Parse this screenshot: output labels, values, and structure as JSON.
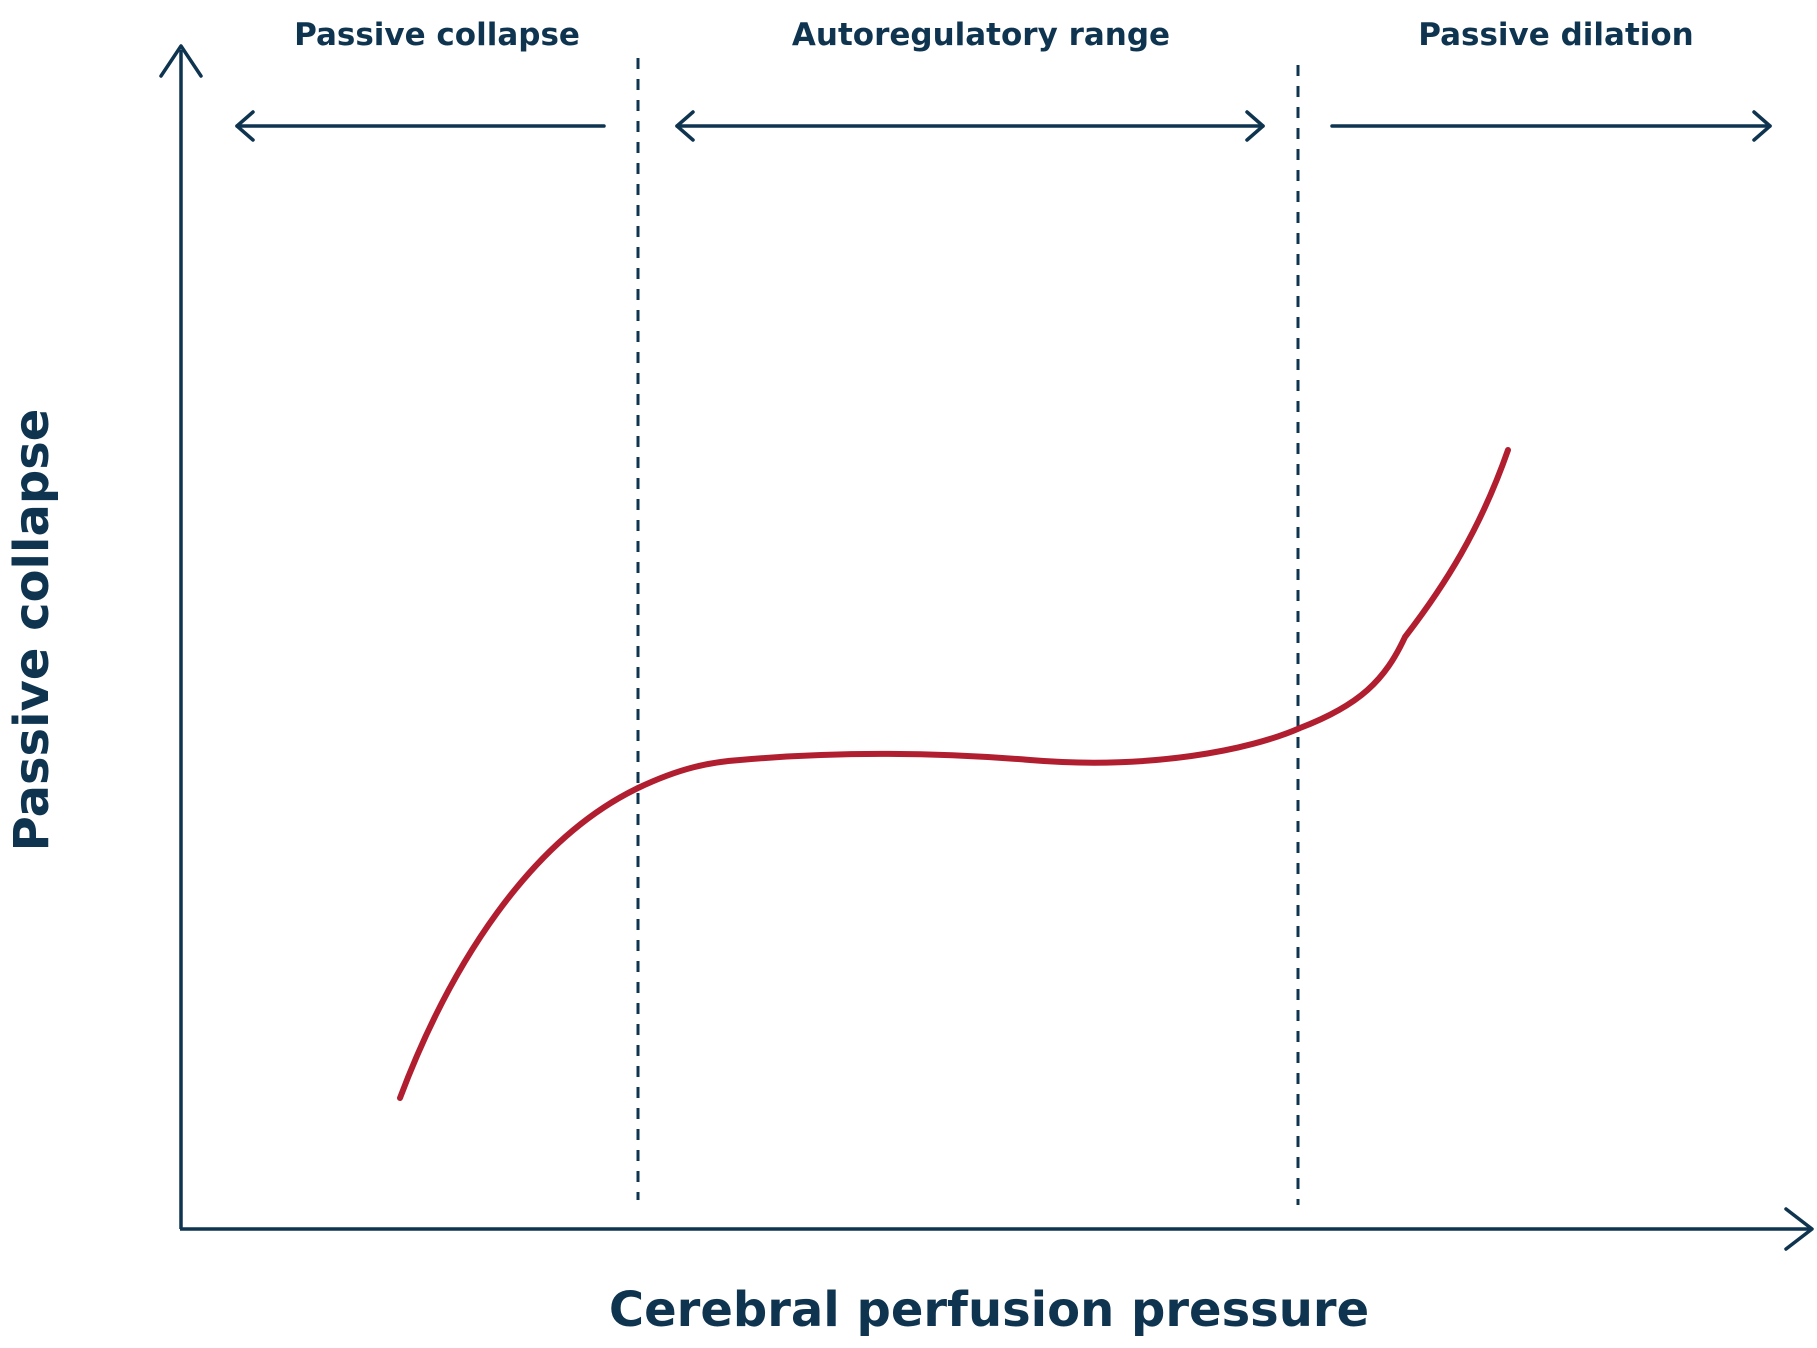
{
  "colors": {
    "ink": "#0f3450",
    "curve": "#b01e2f",
    "background": "#ffffff"
  },
  "regions": [
    {
      "label": "Passive collapse",
      "arrow": "left"
    },
    {
      "label": "Autoregulatory range",
      "arrow": "both"
    },
    {
      "label": "Passive dilation",
      "arrow": "right"
    }
  ],
  "axes": {
    "x_label": "Cerebral perfusion pressure",
    "y_label": "Passive collapse"
  }
}
